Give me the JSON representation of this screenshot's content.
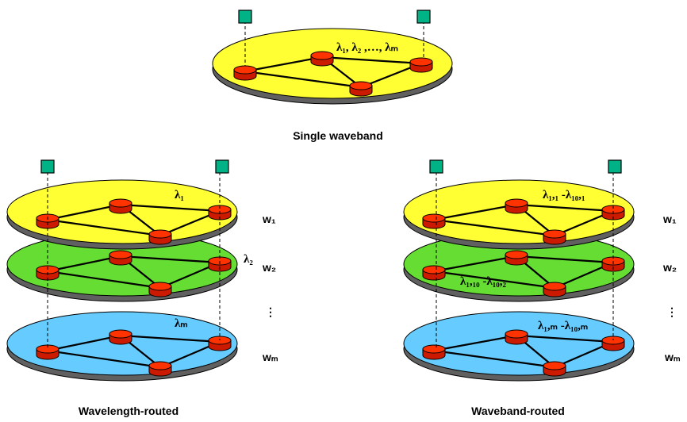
{
  "diagram": {
    "top": {
      "caption": "Single waveband",
      "wavelength_label": "λ₁, λ₂ ,…, λₘ",
      "layer_color": "#ffff33"
    },
    "left": {
      "caption": "Wavelength-routed",
      "layers": [
        {
          "label": "λ₁",
          "w": "w₁",
          "color": "#ffff33"
        },
        {
          "label": "λ₂",
          "w": "w₂",
          "color": "#66dd33"
        },
        {
          "label": "λₘ",
          "w": "wₘ",
          "color": "#66ccff"
        }
      ]
    },
    "right": {
      "caption": "Waveband-routed",
      "layers": [
        {
          "label": "λ₁,₁ -λ₁₀,₁",
          "w": "w₁",
          "color": "#ffff33"
        },
        {
          "label": "λ₁,₁₀ -λ₁₀,₂",
          "w": "w₂",
          "color": "#66dd33"
        },
        {
          "label": "λ₁,ₘ -λ₁₀,ₘ",
          "w": "wₘ",
          "color": "#66ccff"
        }
      ]
    },
    "ellipsis": "⋮",
    "colors": {
      "node": "#ff2200",
      "terminal": "#00b386",
      "disk_edge": "#606060"
    }
  }
}
